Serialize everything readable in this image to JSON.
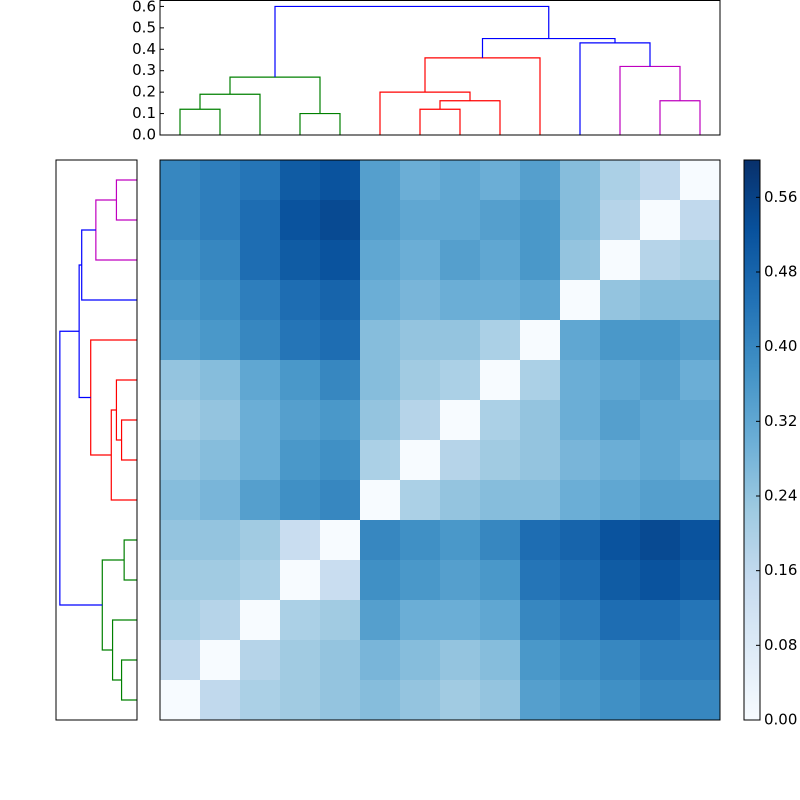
{
  "chart_data": {
    "type": "clustermap",
    "values": [
      [
        0.4,
        0.42,
        0.44,
        0.5,
        0.52,
        0.34,
        0.3,
        0.32,
        0.3,
        0.34,
        0.26,
        0.2,
        0.16,
        0
      ],
      [
        0.4,
        0.42,
        0.46,
        0.52,
        0.54,
        0.34,
        0.32,
        0.32,
        0.34,
        0.36,
        0.26,
        0.18,
        0,
        0.16
      ],
      [
        0.38,
        0.4,
        0.46,
        0.5,
        0.52,
        0.32,
        0.3,
        0.34,
        0.32,
        0.36,
        0.24,
        0,
        0.18,
        0.2
      ],
      [
        0.36,
        0.38,
        0.42,
        0.46,
        0.48,
        0.3,
        0.28,
        0.3,
        0.3,
        0.32,
        0,
        0.24,
        0.26,
        0.26
      ],
      [
        0.34,
        0.36,
        0.4,
        0.44,
        0.46,
        0.26,
        0.24,
        0.24,
        0.2,
        0,
        0.32,
        0.36,
        0.36,
        0.34
      ],
      [
        0.24,
        0.26,
        0.32,
        0.36,
        0.4,
        0.26,
        0.22,
        0.2,
        0,
        0.2,
        0.3,
        0.32,
        0.34,
        0.3
      ],
      [
        0.22,
        0.24,
        0.3,
        0.34,
        0.36,
        0.24,
        0.18,
        0,
        0.2,
        0.24,
        0.3,
        0.34,
        0.32,
        0.32
      ],
      [
        0.24,
        0.26,
        0.3,
        0.36,
        0.38,
        0.2,
        0,
        0.18,
        0.22,
        0.24,
        0.28,
        0.3,
        0.32,
        0.3
      ],
      [
        0.26,
        0.28,
        0.34,
        0.38,
        0.4,
        0,
        0.2,
        0.24,
        0.26,
        0.26,
        0.3,
        0.32,
        0.34,
        0.34
      ],
      [
        0.24,
        0.24,
        0.22,
        0.14,
        0,
        0.4,
        0.38,
        0.36,
        0.4,
        0.46,
        0.48,
        0.52,
        0.54,
        0.52
      ],
      [
        0.22,
        0.22,
        0.2,
        0,
        0.14,
        0.38,
        0.36,
        0.34,
        0.36,
        0.44,
        0.46,
        0.5,
        0.52,
        0.5
      ],
      [
        0.2,
        0.18,
        0,
        0.2,
        0.22,
        0.34,
        0.3,
        0.3,
        0.32,
        0.4,
        0.42,
        0.46,
        0.46,
        0.44
      ],
      [
        0.16,
        0,
        0.18,
        0.22,
        0.24,
        0.28,
        0.26,
        0.24,
        0.26,
        0.36,
        0.38,
        0.4,
        0.42,
        0.42
      ],
      [
        0,
        0.16,
        0.2,
        0.22,
        0.24,
        0.26,
        0.24,
        0.22,
        0.24,
        0.34,
        0.36,
        0.38,
        0.4,
        0.4
      ]
    ],
    "colormap": [
      "#f7fbff",
      "#deebf7",
      "#c6dbef",
      "#9ecae1",
      "#6baed6",
      "#4292c6",
      "#2171b5",
      "#08519c",
      "#08306b"
    ],
    "colorbar": {
      "lim": [
        0,
        0.6
      ],
      "ticks": [
        {
          "value": 0,
          "label": "0.00"
        },
        0.08,
        0.16,
        0.24,
        0.32,
        {
          "value": 0.4,
          "label": "0.40"
        },
        0.48,
        0.56
      ]
    },
    "dendrogram": {
      "ylim": [
        0,
        0.63
      ],
      "yticks": [
        {
          "value": 0,
          "label": "0.0"
        },
        0.1,
        0.2,
        0.3,
        0.4,
        0.5,
        0.6
      ],
      "links": [
        {
          "left": 3,
          "right": 4,
          "height": 0.1,
          "color": "#008000"
        },
        {
          "left": 0,
          "right": 1,
          "height": 0.12,
          "color": "#008000"
        },
        {
          "left": 15,
          "right": 2,
          "height": 0.19,
          "color": "#008000"
        },
        {
          "left": 16,
          "right": 14,
          "height": 0.27,
          "color": "#008000"
        },
        {
          "left": 6,
          "right": 7,
          "height": 0.12,
          "color": "#ff0000"
        },
        {
          "left": 18,
          "right": 8,
          "height": 0.16,
          "color": "#ff0000"
        },
        {
          "left": 5,
          "right": 19,
          "height": 0.2,
          "color": "#ff0000"
        },
        {
          "left": 20,
          "right": 9,
          "height": 0.36,
          "color": "#ff0000"
        },
        {
          "left": 12,
          "right": 13,
          "height": 0.16,
          "color": "#bf00bf"
        },
        {
          "left": 11,
          "right": 22,
          "height": 0.32,
          "color": "#bf00bf"
        },
        {
          "left": 10,
          "right": 23,
          "height": 0.43,
          "color": "#0000ff"
        },
        {
          "left": 21,
          "right": 24,
          "height": 0.45,
          "color": "#0000ff"
        },
        {
          "left": 17,
          "right": 25,
          "height": 0.6,
          "color": "#0000ff"
        }
      ]
    }
  }
}
